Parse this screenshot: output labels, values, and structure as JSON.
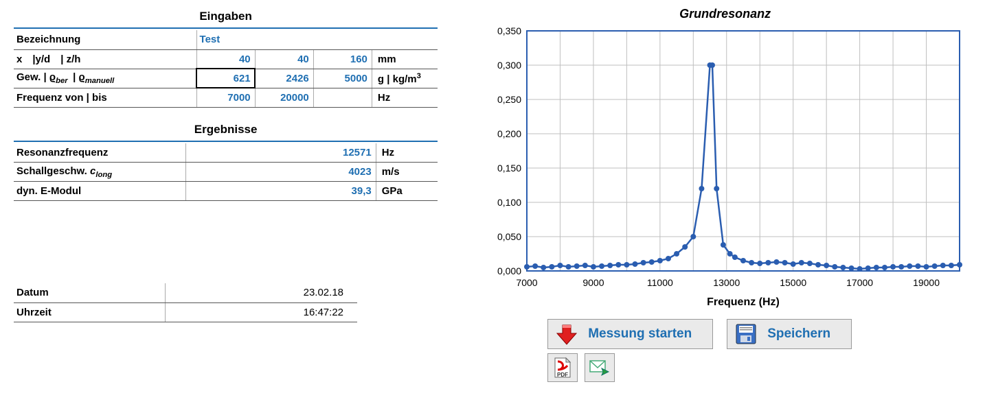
{
  "inputs": {
    "title": "Eingaben",
    "row1_label": "Bezeichnung",
    "row1_value": "Test",
    "row2_label_html": "x |y/d | z/h",
    "row2_v1": "40",
    "row2_v2": "40",
    "row2_v3": "160",
    "row2_unit": "mm",
    "row3_label_html": "Gew. | ϱ<span class='sub'>ber</span> | ϱ<span class='sub'>manuell</span>",
    "row3_v1": "621",
    "row3_v2": "2426",
    "row3_v3": "5000",
    "row3_unit_html": "g | kg/m<span class='sup'>3</span>",
    "row4_label": "Frequenz von | bis",
    "row4_v1": "7000",
    "row4_v2": "20000",
    "row4_unit": "Hz"
  },
  "results": {
    "title": "Ergebnisse",
    "r1_label": "Resonanzfrequenz",
    "r1_val": "12571",
    "r1_unit": "Hz",
    "r2_label_html": "Schallgeschw. <i>c</i><span class='sub'>long</span>",
    "r2_val": "4023",
    "r2_unit": "m/s",
    "r3_label": "dyn. E-Modul",
    "r3_val": "39,3",
    "r3_unit": "GPa"
  },
  "meta": {
    "date_label": "Datum",
    "date_val": "23.02.18",
    "time_label": "Uhrzeit",
    "time_val": "16:47:22"
  },
  "chart": {
    "title": "Grundresonanz",
    "xlabel": "Frequenz (Hz)",
    "type": "line",
    "line_color": "#2a5db0",
    "marker_color": "#2a5db0",
    "marker_radius": 4,
    "line_width": 2.5,
    "plot_border_color": "#2a5db0",
    "plot_border_width": 2,
    "grid_color": "#bfbfbf",
    "background_color": "#ffffff",
    "tick_fontsize": 14,
    "label_fontsize": 16,
    "title_fontsize": 18,
    "xlim": [
      7000,
      20000
    ],
    "ylim": [
      0,
      0.35
    ],
    "xticks": [
      7000,
      9000,
      11000,
      13000,
      15000,
      17000,
      19000
    ],
    "xtick_labels": [
      "7000",
      "9000",
      "11000",
      "13000",
      "15000",
      "17000",
      "19000"
    ],
    "yticks": [
      0,
      0.05,
      0.1,
      0.15,
      0.2,
      0.25,
      0.3,
      0.35
    ],
    "ytick_labels": [
      "0,000",
      "0,050",
      "0,100",
      "0,150",
      "0,200",
      "0,250",
      "0,300",
      "0,350"
    ],
    "x": [
      7000,
      7250,
      7500,
      7750,
      8000,
      8250,
      8500,
      8750,
      9000,
      9250,
      9500,
      9750,
      10000,
      10250,
      10500,
      10750,
      11000,
      11250,
      11500,
      11750,
      12000,
      12250,
      12500,
      12571,
      12700,
      12900,
      13100,
      13250,
      13500,
      13750,
      14000,
      14250,
      14500,
      14750,
      15000,
      15250,
      15500,
      15750,
      16000,
      16250,
      16500,
      16750,
      17000,
      17250,
      17500,
      17750,
      18000,
      18250,
      18500,
      18750,
      19000,
      19250,
      19500,
      19750,
      20000
    ],
    "y": [
      0.006,
      0.007,
      0.005,
      0.006,
      0.008,
      0.006,
      0.007,
      0.008,
      0.006,
      0.007,
      0.008,
      0.009,
      0.009,
      0.01,
      0.012,
      0.013,
      0.015,
      0.018,
      0.025,
      0.035,
      0.05,
      0.12,
      0.3,
      0.3,
      0.12,
      0.038,
      0.025,
      0.02,
      0.015,
      0.012,
      0.011,
      0.012,
      0.013,
      0.012,
      0.01,
      0.012,
      0.011,
      0.009,
      0.008,
      0.006,
      0.005,
      0.004,
      0.003,
      0.004,
      0.005,
      0.005,
      0.006,
      0.006,
      0.007,
      0.007,
      0.006,
      0.007,
      0.008,
      0.008,
      0.009
    ]
  },
  "buttons": {
    "start": "Messung starten",
    "save": "Speichern"
  }
}
